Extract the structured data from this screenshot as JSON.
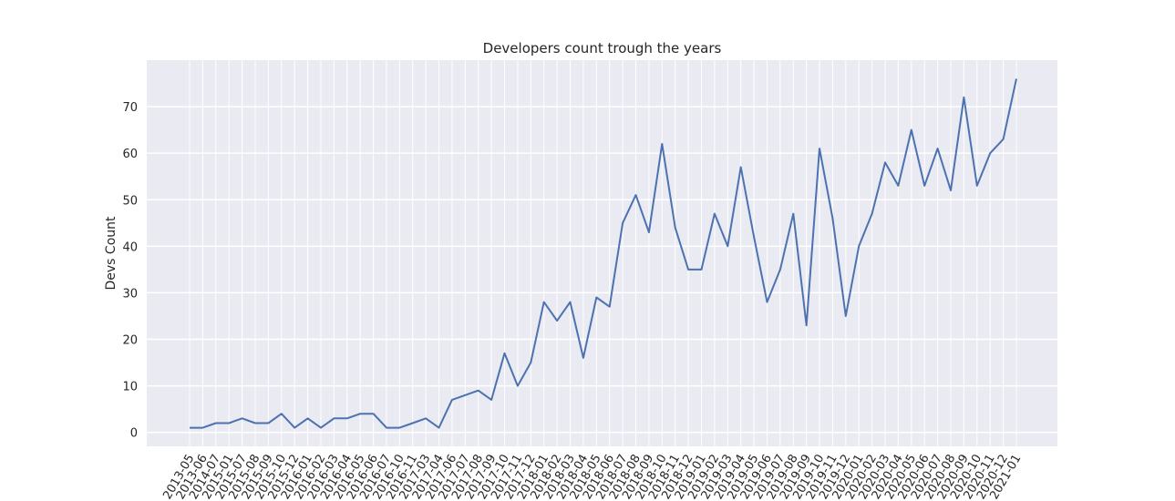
{
  "chart_data": {
    "type": "line",
    "title": "Developers count trough the years",
    "xlabel": "",
    "ylabel": "Devs Count",
    "ylim": [
      -3,
      80
    ],
    "yticks": [
      0,
      10,
      20,
      30,
      40,
      50,
      60,
      70
    ],
    "grid": true,
    "legend": "none",
    "categories": [
      "2013-05",
      "2013-06",
      "2014-07",
      "2015-01",
      "2015-07",
      "2015-08",
      "2015-09",
      "2015-10",
      "2015-12",
      "2016-01",
      "2016-02",
      "2016-03",
      "2016-04",
      "2016-05",
      "2016-06",
      "2016-07",
      "2016-10",
      "2016-11",
      "2017-03",
      "2017-04",
      "2017-06",
      "2017-07",
      "2017-08",
      "2017-09",
      "2017-10",
      "2017-11",
      "2017-12",
      "2018-01",
      "2018-02",
      "2018-03",
      "2018-04",
      "2018-05",
      "2018-06",
      "2018-07",
      "2018-08",
      "2018-09",
      "2018-10",
      "2018-11",
      "2018-12",
      "2019-01",
      "2019-02",
      "2019-03",
      "2019-04",
      "2019-05",
      "2019-06",
      "2019-07",
      "2019-08",
      "2019-09",
      "2019-10",
      "2019-11",
      "2019-12",
      "2020-01",
      "2020-02",
      "2020-03",
      "2020-04",
      "2020-05",
      "2020-06",
      "2020-07",
      "2020-08",
      "2020-09",
      "2020-10",
      "2020-11",
      "2020-12",
      "2021-01"
    ],
    "series": [
      {
        "values": [
          1,
          1,
          2,
          2,
          3,
          2,
          2,
          4,
          1,
          3,
          1,
          3,
          3,
          4,
          4,
          1,
          1,
          2,
          3,
          1,
          7,
          8,
          9,
          7,
          17,
          10,
          15,
          28,
          24,
          28,
          16,
          29,
          27,
          45,
          51,
          43,
          62,
          44,
          35,
          35,
          47,
          40,
          57,
          42,
          28,
          35,
          47,
          23,
          61,
          46,
          25,
          40,
          47,
          58,
          53,
          65,
          53,
          61,
          52,
          72,
          53,
          60,
          63,
          76
        ]
      }
    ],
    "colors": {
      "line": "#4c72b0",
      "plot_background": "#eaeaf2",
      "grid": "#ffffff"
    }
  }
}
